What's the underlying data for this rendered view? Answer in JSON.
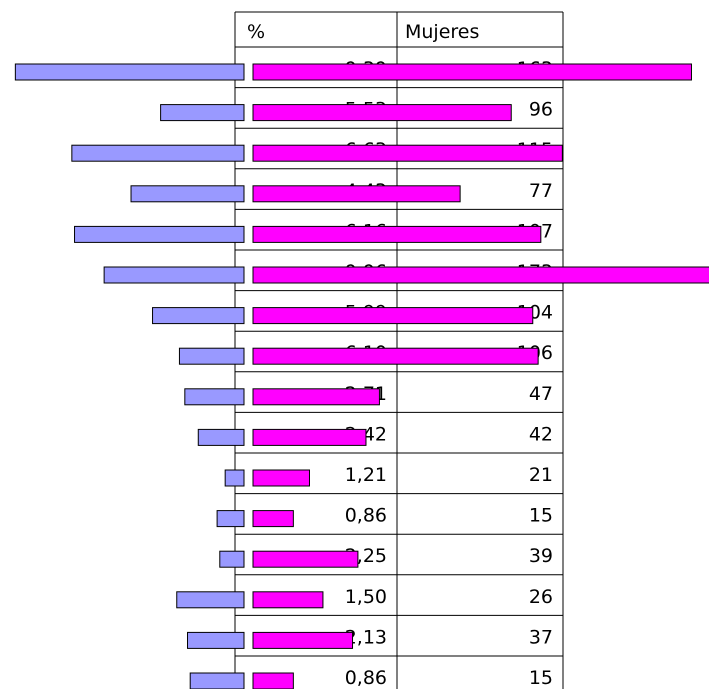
{
  "table": {
    "headers": [
      "%",
      "Mujeres"
    ],
    "rows": [
      [
        "9,39",
        163
      ],
      [
        "5,53",
        96
      ],
      [
        "6,63",
        115
      ],
      [
        "4,43",
        77
      ],
      [
        "6,16",
        107
      ],
      [
        "9,96",
        173
      ],
      [
        "5,99",
        104
      ],
      [
        "6,10",
        106
      ],
      [
        "2,71",
        47
      ],
      [
        "2,42",
        42
      ],
      [
        "1,21",
        21
      ],
      [
        "0,86",
        15
      ],
      [
        "2,25",
        39
      ],
      [
        "1,50",
        26
      ],
      [
        "2,13",
        37
      ],
      [
        "0,86",
        15
      ]
    ]
  },
  "hombres": [
    85,
    31,
    64,
    42,
    63,
    52,
    34,
    24,
    22,
    17,
    7,
    10,
    9,
    25,
    21,
    20
  ],
  "colors": {
    "mujeres": "#ff00ff",
    "hombres": "#9999ff"
  }
}
